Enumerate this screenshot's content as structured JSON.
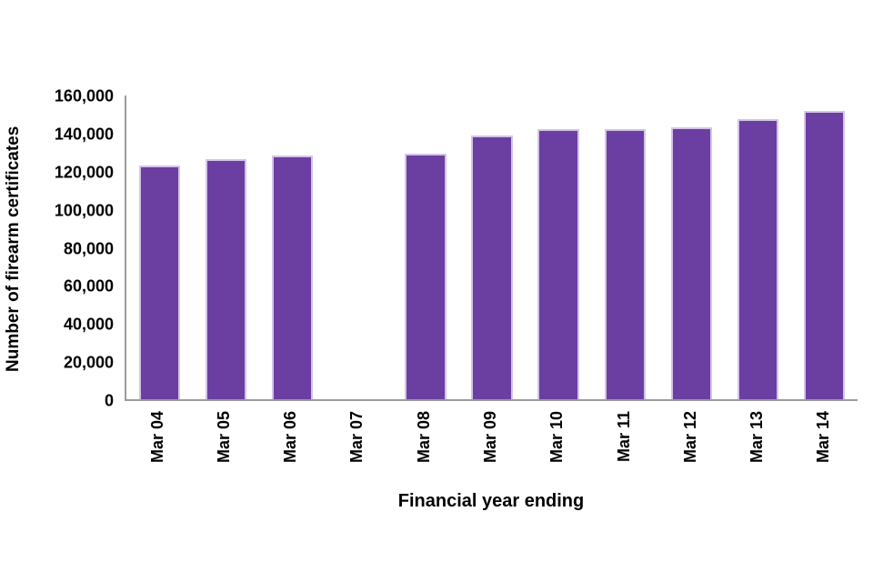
{
  "chart_data": {
    "type": "bar",
    "title": "",
    "categories": [
      "Mar 04",
      "Mar 05",
      "Mar 06",
      "Mar 07",
      "Mar 08",
      "Mar 09",
      "Mar 10",
      "Mar 11",
      "Mar 12",
      "Mar 13",
      "Mar 14"
    ],
    "values": [
      123000,
      126300,
      128300,
      null,
      129300,
      138900,
      142400,
      142100,
      143300,
      147600,
      152000
    ],
    "xlabel": "Financial year ending",
    "ylabel": "Number of firearm certificates",
    "ylim": [
      0,
      160000
    ],
    "y_ticks": [
      "0",
      "20,000",
      "40,000",
      "60,000",
      "80,000",
      "100,000",
      "120,000",
      "140,000",
      "160,000"
    ],
    "grid": false,
    "legend": "none",
    "colors": {
      "bar_fill": "#6B3EA2",
      "bar_border": "#D2C4E8",
      "axis_line": "#9B9B9B",
      "text": "#000000"
    }
  }
}
